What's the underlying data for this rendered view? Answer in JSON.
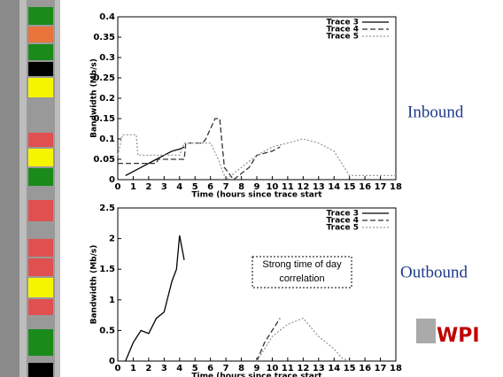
{
  "chart_data": [
    {
      "type": "line",
      "xlabel": "Time (hours since trace start",
      "ylabel": "Bandwidth (Mb/s)",
      "xlim": [
        0,
        18
      ],
      "xticks": [
        0,
        1,
        2,
        3,
        4,
        5,
        6,
        7,
        8,
        9,
        10,
        11,
        12,
        13,
        14,
        15,
        16,
        17,
        18
      ],
      "ylim": [
        0,
        0.4
      ],
      "yticks": [
        0,
        0.05,
        0.1,
        0.15,
        0.2,
        0.25,
        0.3,
        0.35,
        0.4
      ],
      "legend": "upper right",
      "series": [
        {
          "name": "Trace 3",
          "color": "#000000",
          "dash": "solid",
          "x": [
            0.5,
            1,
            1.5,
            2,
            2.5,
            3,
            3.5,
            4,
            4.3
          ],
          "values": [
            0.01,
            0.02,
            0.03,
            0.04,
            0.05,
            0.06,
            0.07,
            0.075,
            0.08
          ]
        },
        {
          "name": "Trace 4",
          "color": "#333333",
          "dash": "dashed",
          "x": [
            0,
            0.5,
            2.5,
            2.6,
            4.3,
            4.4,
            5.5,
            5.7,
            6.3,
            6.6,
            6.9,
            7.5,
            8.5,
            9,
            10,
            10.5
          ],
          "values": [
            0.04,
            0.04,
            0.04,
            0.05,
            0.05,
            0.09,
            0.09,
            0.1,
            0.15,
            0.15,
            0.03,
            0,
            0.03,
            0.06,
            0.07,
            0.08
          ]
        },
        {
          "name": "Trace 5",
          "color": "#999999",
          "dash": "dotted",
          "x": [
            0,
            0.3,
            1.2,
            1.3,
            4,
            4.3,
            6,
            6.5,
            7,
            8,
            9,
            10,
            11,
            12,
            13,
            14,
            14.5,
            15,
            18
          ],
          "values": [
            0.06,
            0.11,
            0.11,
            0.06,
            0.06,
            0.09,
            0.09,
            0.05,
            0,
            0.03,
            0.06,
            0.08,
            0.09,
            0.1,
            0.09,
            0.07,
            0.04,
            0.01,
            0.01
          ]
        }
      ]
    },
    {
      "type": "line",
      "xlabel": "Time (hours since trace start",
      "ylabel": "Bandwidth (Mb/s)",
      "xlim": [
        0,
        18
      ],
      "xticks": [
        0,
        1,
        2,
        3,
        4,
        5,
        6,
        7,
        8,
        9,
        10,
        11,
        12,
        13,
        14,
        15,
        16,
        17,
        18
      ],
      "ylim": [
        0,
        2.5
      ],
      "yticks": [
        0,
        0.5,
        1,
        1.5,
        2,
        2.5
      ],
      "legend": "upper right",
      "annotation": [
        "Strong time of day",
        "correlation"
      ],
      "series": [
        {
          "name": "Trace 3",
          "color": "#000000",
          "dash": "solid",
          "x": [
            0.5,
            1,
            1.5,
            2,
            2.5,
            3,
            3.5,
            3.8,
            4,
            4.3
          ],
          "values": [
            0,
            0.3,
            0.5,
            0.45,
            0.7,
            0.8,
            1.3,
            1.5,
            2.05,
            1.65
          ]
        },
        {
          "name": "Trace 4",
          "color": "#333333",
          "dash": "dashed",
          "x": [
            9,
            9.5,
            10,
            10.5
          ],
          "values": [
            0,
            0.3,
            0.5,
            0.7
          ]
        },
        {
          "name": "Trace 5",
          "color": "#999999",
          "dash": "dotted",
          "x": [
            9,
            10,
            11,
            12,
            12.5,
            13,
            14,
            14.5,
            15
          ],
          "values": [
            0,
            0.4,
            0.6,
            0.7,
            0.55,
            0.4,
            0.2,
            0.05,
            0
          ]
        }
      ]
    }
  ],
  "slide": {
    "inbound": "Inbound",
    "outbound": "Outbound",
    "logo": "WPI"
  }
}
